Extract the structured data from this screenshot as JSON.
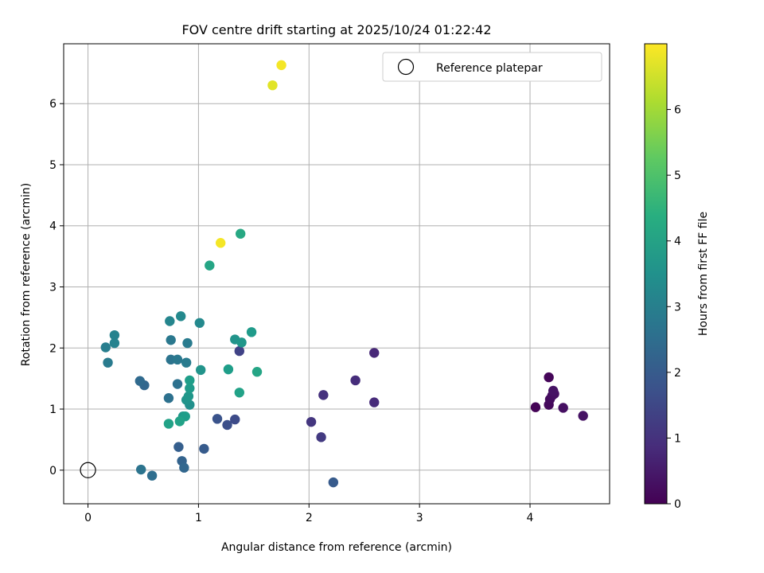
{
  "chart_data": {
    "type": "scatter",
    "title": "FOV centre drift starting at 2025/10/24 01:22:42",
    "xlabel": "Angular distance from reference (arcmin)",
    "ylabel": "Rotation from reference (arcmin)",
    "xlim": [
      -0.22,
      4.72
    ],
    "ylim": [
      -0.55,
      6.98
    ],
    "xticks": [
      "0",
      "1",
      "2",
      "3",
      "4"
    ],
    "yticks": [
      "0",
      "1",
      "2",
      "3",
      "4",
      "5",
      "6"
    ],
    "grid": true,
    "legend": {
      "placement": "top-right",
      "entries": [
        "Reference platepar"
      ]
    },
    "colorbar": {
      "label": "Hours from first FF file",
      "range": [
        0,
        7
      ],
      "ticks": [
        "0",
        "1",
        "2",
        "3",
        "4",
        "5",
        "6"
      ],
      "colormap": "viridis"
    },
    "reference_point": {
      "x": 0,
      "y": 0
    },
    "points": [
      {
        "x": 4.05,
        "y": 1.03,
        "c": 0.05
      },
      {
        "x": 4.17,
        "y": 1.52,
        "c": 0.1
      },
      {
        "x": 4.17,
        "y": 1.07,
        "c": 0.15
      },
      {
        "x": 4.18,
        "y": 1.16,
        "c": 0.2
      },
      {
        "x": 4.2,
        "y": 1.22,
        "c": 0.25
      },
      {
        "x": 4.22,
        "y": 1.25,
        "c": 0.3
      },
      {
        "x": 4.21,
        "y": 1.3,
        "c": 0.35
      },
      {
        "x": 4.3,
        "y": 1.02,
        "c": 0.3
      },
      {
        "x": 4.48,
        "y": 0.89,
        "c": 0.35
      },
      {
        "x": 2.59,
        "y": 1.92,
        "c": 0.8
      },
      {
        "x": 2.42,
        "y": 1.47,
        "c": 0.9
      },
      {
        "x": 2.59,
        "y": 1.11,
        "c": 0.85
      },
      {
        "x": 2.13,
        "y": 1.23,
        "c": 1.0
      },
      {
        "x": 2.02,
        "y": 0.79,
        "c": 1.1
      },
      {
        "x": 2.11,
        "y": 0.54,
        "c": 1.2
      },
      {
        "x": 2.22,
        "y": -0.2,
        "c": 2.0
      },
      {
        "x": 1.37,
        "y": 1.95,
        "c": 1.4
      },
      {
        "x": 1.33,
        "y": 0.83,
        "c": 1.6
      },
      {
        "x": 1.26,
        "y": 0.74,
        "c": 1.7
      },
      {
        "x": 1.17,
        "y": 0.84,
        "c": 1.8
      },
      {
        "x": 1.05,
        "y": 0.35,
        "c": 2.0
      },
      {
        "x": 0.82,
        "y": 0.38,
        "c": 2.1
      },
      {
        "x": 0.85,
        "y": 0.15,
        "c": 2.2
      },
      {
        "x": 0.87,
        "y": 0.04,
        "c": 2.3
      },
      {
        "x": 0.58,
        "y": -0.09,
        "c": 2.5
      },
      {
        "x": 0.48,
        "y": 0.01,
        "c": 2.7
      },
      {
        "x": 0.51,
        "y": 1.39,
        "c": 2.3
      },
      {
        "x": 0.47,
        "y": 1.46,
        "c": 2.4
      },
      {
        "x": 0.73,
        "y": 1.18,
        "c": 2.6
      },
      {
        "x": 0.81,
        "y": 1.41,
        "c": 2.6
      },
      {
        "x": 0.75,
        "y": 1.81,
        "c": 2.7
      },
      {
        "x": 0.81,
        "y": 1.81,
        "c": 2.8
      },
      {
        "x": 0.89,
        "y": 1.76,
        "c": 2.9
      },
      {
        "x": 0.75,
        "y": 2.13,
        "c": 2.8
      },
      {
        "x": 0.9,
        "y": 2.08,
        "c": 2.9
      },
      {
        "x": 0.18,
        "y": 1.76,
        "c": 2.9
      },
      {
        "x": 0.16,
        "y": 2.01,
        "c": 3.0
      },
      {
        "x": 0.24,
        "y": 2.08,
        "c": 3.1
      },
      {
        "x": 0.24,
        "y": 2.21,
        "c": 3.1
      },
      {
        "x": 0.74,
        "y": 2.44,
        "c": 3.2
      },
      {
        "x": 0.84,
        "y": 2.52,
        "c": 3.3
      },
      {
        "x": 1.01,
        "y": 2.41,
        "c": 3.3
      },
      {
        "x": 1.02,
        "y": 1.64,
        "c": 3.6
      },
      {
        "x": 1.33,
        "y": 2.14,
        "c": 3.6
      },
      {
        "x": 1.39,
        "y": 2.09,
        "c": 3.7
      },
      {
        "x": 1.48,
        "y": 2.26,
        "c": 3.8
      },
      {
        "x": 1.27,
        "y": 1.65,
        "c": 3.9
      },
      {
        "x": 1.53,
        "y": 1.61,
        "c": 4.1
      },
      {
        "x": 1.37,
        "y": 1.27,
        "c": 4.0
      },
      {
        "x": 0.92,
        "y": 1.47,
        "c": 3.9
      },
      {
        "x": 0.92,
        "y": 1.34,
        "c": 3.8
      },
      {
        "x": 0.91,
        "y": 1.21,
        "c": 3.7
      },
      {
        "x": 0.89,
        "y": 1.15,
        "c": 3.6
      },
      {
        "x": 0.92,
        "y": 1.07,
        "c": 3.5
      },
      {
        "x": 0.86,
        "y": 0.88,
        "c": 3.7
      },
      {
        "x": 0.88,
        "y": 0.88,
        "c": 3.9
      },
      {
        "x": 0.83,
        "y": 0.8,
        "c": 4.0
      },
      {
        "x": 0.73,
        "y": 0.76,
        "c": 4.0
      },
      {
        "x": 1.1,
        "y": 3.35,
        "c": 4.1
      },
      {
        "x": 1.38,
        "y": 3.87,
        "c": 4.2
      },
      {
        "x": 1.2,
        "y": 3.72,
        "c": 6.9
      },
      {
        "x": 1.67,
        "y": 6.3,
        "c": 6.7
      },
      {
        "x": 1.75,
        "y": 6.63,
        "c": 6.9
      }
    ]
  }
}
